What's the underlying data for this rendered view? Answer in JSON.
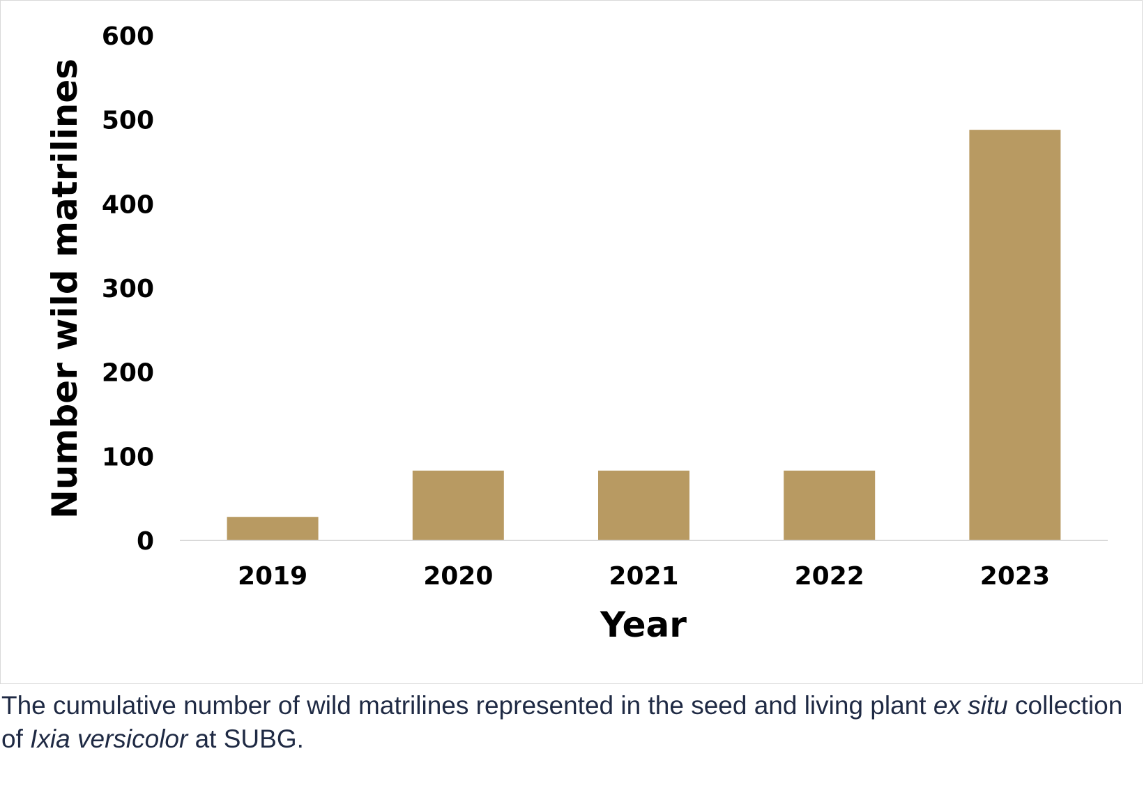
{
  "chart_data": {
    "type": "bar",
    "categories": [
      "2019",
      "2020",
      "2021",
      "2022",
      "2023"
    ],
    "values": [
      28,
      83,
      83,
      83,
      488
    ],
    "xlabel": "Year",
    "ylabel": "Number wild matrilines",
    "ylim": [
      0,
      600
    ],
    "yticks": [
      0,
      100,
      200,
      300,
      400,
      500,
      600
    ],
    "ytick_labels": [
      "0",
      "100",
      "200",
      "300",
      "400",
      "500",
      "600"
    ],
    "grid": false,
    "legend": "none",
    "bar_color": "#b89a62",
    "axis_color": "#d9d9d9"
  },
  "caption": {
    "part1": "The cumulative number of wild matrilines represented in the seed and living plant ",
    "part2": "ex situ",
    "part3": " collection of ",
    "part4": "Ixia versicolor",
    "part5": " at SUBG."
  }
}
